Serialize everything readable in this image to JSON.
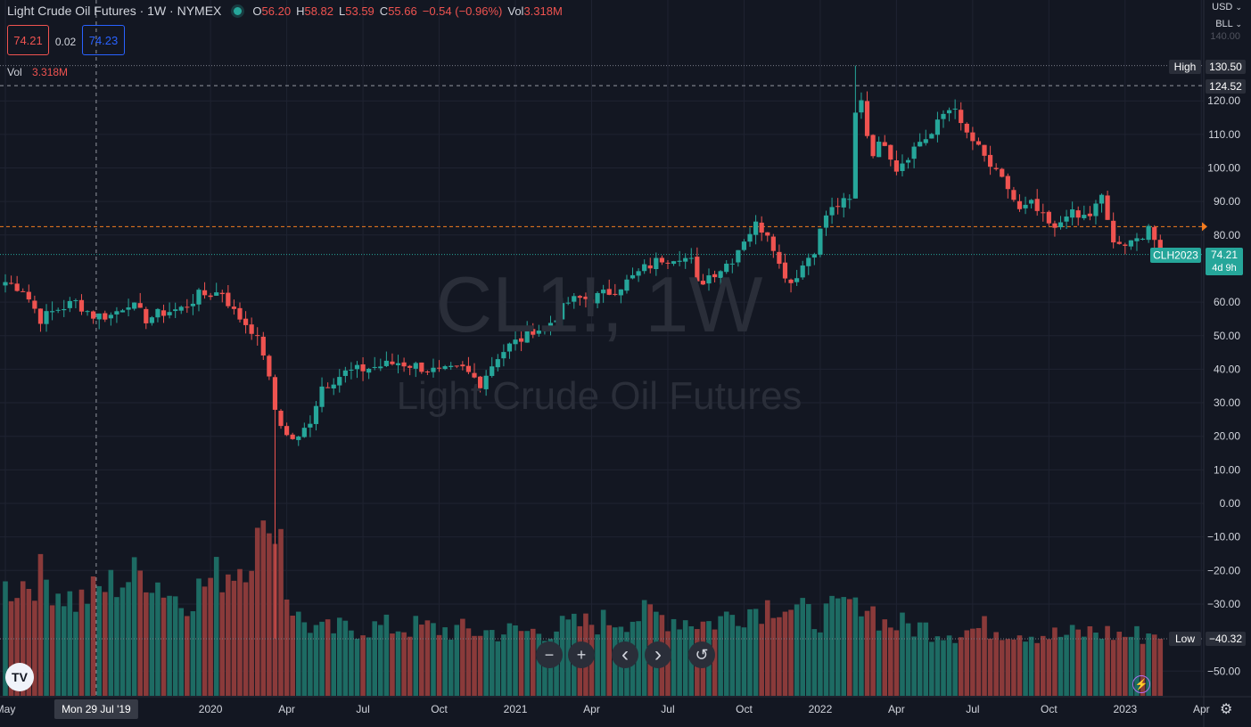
{
  "header": {
    "symbol_title": "Light Crude Oil Futures · 1W · NYMEX",
    "ohlc": [
      {
        "k": "O",
        "v": "56.20"
      },
      {
        "k": "H",
        "v": "58.82"
      },
      {
        "k": "L",
        "v": "53.59"
      },
      {
        "k": "C",
        "v": "55.66"
      },
      {
        "k": "",
        "v": "−0.54 (−0.96%)"
      },
      {
        "k": "Vol",
        "v": "3.318M"
      }
    ],
    "bid": "74.21",
    "spread": "0.02",
    "ask": "74.23",
    "vol_label": "Vol",
    "vol_value": "3.318M"
  },
  "top_right": {
    "currency": "USD",
    "unit": "BLL"
  },
  "watermark": {
    "symbol": "CL1!, 1W",
    "name": "Light Crude Oil Futures"
  },
  "price_labels": {
    "high_tag": "High",
    "high_value": "130.50",
    "crosshair_value": "124.52",
    "contract": "CLH2023",
    "last_price": "74.21",
    "countdown": "4d 9h",
    "low_tag": "Low",
    "low_value": "−40.32",
    "top_partial": "140.00"
  },
  "crosshair_date": "Mon 29 Jul '19",
  "controls": {
    "zoom_out": "−",
    "zoom_in": "+",
    "scroll_left": "‹",
    "scroll_right": "›",
    "reset": "↺",
    "logo": "TV"
  },
  "colors": {
    "background": "#131722",
    "up": "#26a69a",
    "down": "#ef5350",
    "vol_up": "#1d6b63",
    "vol_down": "#8a3a3a",
    "grid": "#1f2331",
    "text": "#d1d4dc",
    "orange_line": "#f57c1f"
  },
  "chart_data": {
    "type": "candlestick",
    "y_axis": {
      "ticks": [
        120,
        110,
        100,
        90,
        80,
        60,
        50,
        40,
        30,
        20,
        10,
        0,
        -10,
        -20,
        -30,
        -50
      ],
      "tick_labels": [
        "120.00",
        "110.00",
        "100.00",
        "90.00",
        "80.00",
        "60.00",
        "50.00",
        "40.00",
        "30.00",
        "20.00",
        "10.00",
        "0.00",
        "−10.00",
        "−20.00",
        "−30.00",
        "−50.00"
      ],
      "range": [
        -57,
        141
      ]
    },
    "x_axis": {
      "labels": [
        {
          "text": "May",
          "week": 0
        },
        {
          "text": "2020",
          "week": 35
        },
        {
          "text": "Apr",
          "week": 48
        },
        {
          "text": "Jul",
          "week": 61
        },
        {
          "text": "Oct",
          "week": 74
        },
        {
          "text": "2021",
          "week": 87
        },
        {
          "text": "Apr",
          "week": 100
        },
        {
          "text": "Jul",
          "week": 113
        },
        {
          "text": "Oct",
          "week": 126
        },
        {
          "text": "2022",
          "week": 139
        },
        {
          "text": "Apr",
          "week": 152
        },
        {
          "text": "Jul",
          "week": 165
        },
        {
          "text": "Oct",
          "week": 178
        },
        {
          "text": "2023",
          "week": 191
        },
        {
          "text": "Apr",
          "week": 204
        }
      ],
      "weeks_total": 208
    },
    "crosshair": {
      "week": 15.5,
      "price": 124.52
    },
    "last_price": 74.21,
    "orange_level": 82.5,
    "high": 130.5,
    "low": -40.32,
    "volume_scale_max": 100,
    "close_anchors": [
      [
        0,
        66
      ],
      [
        3,
        64
      ],
      [
        6,
        55
      ],
      [
        9,
        58
      ],
      [
        12,
        60
      ],
      [
        15,
        56
      ],
      [
        18,
        56
      ],
      [
        21,
        60
      ],
      [
        24,
        55
      ],
      [
        27,
        57
      ],
      [
        30,
        58
      ],
      [
        33,
        62
      ],
      [
        37,
        63
      ],
      [
        39,
        57
      ],
      [
        42,
        52
      ],
      [
        44,
        45
      ],
      [
        46,
        28
      ],
      [
        48,
        20
      ],
      [
        50,
        19
      ],
      [
        52,
        25
      ],
      [
        54,
        35
      ],
      [
        56,
        37
      ],
      [
        58,
        39
      ],
      [
        61,
        40
      ],
      [
        64,
        41
      ],
      [
        67,
        42
      ],
      [
        70,
        41
      ],
      [
        74,
        39
      ],
      [
        78,
        40
      ],
      [
        81,
        36
      ],
      [
        84,
        44
      ],
      [
        86,
        47
      ],
      [
        88,
        49
      ],
      [
        90,
        52
      ],
      [
        92,
        52
      ],
      [
        94,
        56
      ],
      [
        96,
        60
      ],
      [
        98,
        61
      ],
      [
        100,
        61
      ],
      [
        103,
        63
      ],
      [
        106,
        66
      ],
      [
        109,
        70
      ],
      [
        112,
        73
      ],
      [
        115,
        74
      ],
      [
        117,
        72
      ],
      [
        118,
        65
      ],
      [
        120,
        68
      ],
      [
        122,
        70
      ],
      [
        124,
        73
      ],
      [
        126,
        79
      ],
      [
        128,
        83
      ],
      [
        130,
        81
      ],
      [
        131,
        77
      ],
      [
        132,
        71
      ],
      [
        134,
        66
      ],
      [
        136,
        71
      ],
      [
        138,
        76
      ],
      [
        140,
        86
      ],
      [
        142,
        89
      ],
      [
        144,
        90
      ],
      [
        145,
        116
      ],
      [
        146,
        121
      ],
      [
        147,
        110
      ],
      [
        148,
        105
      ],
      [
        150,
        108
      ],
      [
        152,
        100
      ],
      [
        154,
        104
      ],
      [
        156,
        108
      ],
      [
        158,
        110
      ],
      [
        160,
        116
      ],
      [
        162,
        119
      ],
      [
        163,
        112
      ],
      [
        165,
        108
      ],
      [
        167,
        103
      ],
      [
        169,
        98
      ],
      [
        171,
        94
      ],
      [
        173,
        87
      ],
      [
        175,
        89
      ],
      [
        177,
        85
      ],
      [
        179,
        81
      ],
      [
        181,
        87
      ],
      [
        183,
        85
      ],
      [
        185,
        86
      ],
      [
        187,
        91
      ],
      [
        189,
        78
      ],
      [
        190,
        76
      ],
      [
        191,
        76
      ],
      [
        192,
        80
      ],
      [
        194,
        79
      ],
      [
        195,
        81
      ],
      [
        196,
        78
      ],
      [
        197,
        74
      ]
    ],
    "volume_anchors": [
      [
        0,
        50
      ],
      [
        6,
        56
      ],
      [
        12,
        44
      ],
      [
        18,
        52
      ],
      [
        24,
        58
      ],
      [
        30,
        44
      ],
      [
        36,
        56
      ],
      [
        40,
        62
      ],
      [
        43,
        72
      ],
      [
        45,
        80
      ],
      [
        46,
        70
      ],
      [
        48,
        48
      ],
      [
        50,
        36
      ],
      [
        54,
        30
      ],
      [
        60,
        32
      ],
      [
        70,
        32
      ],
      [
        80,
        30
      ],
      [
        90,
        30
      ],
      [
        100,
        34
      ],
      [
        110,
        38
      ],
      [
        120,
        34
      ],
      [
        126,
        40
      ],
      [
        132,
        44
      ],
      [
        138,
        36
      ],
      [
        142,
        40
      ],
      [
        144,
        44
      ],
      [
        146,
        46
      ],
      [
        150,
        34
      ],
      [
        156,
        32
      ],
      [
        162,
        30
      ],
      [
        168,
        32
      ],
      [
        174,
        30
      ],
      [
        180,
        28
      ],
      [
        186,
        30
      ],
      [
        192,
        28
      ],
      [
        197,
        30
      ]
    ]
  }
}
